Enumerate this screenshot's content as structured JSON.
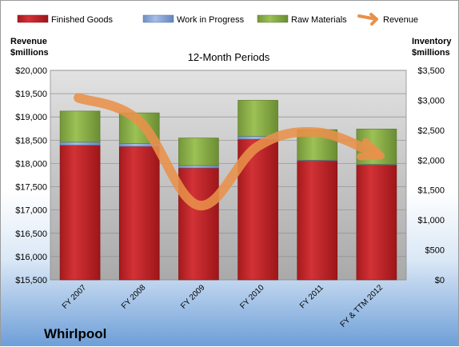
{
  "chart_data": {
    "type": "bar",
    "title": "12-Month Periods",
    "company": "Whirlpool",
    "categories": [
      "FY 2007",
      "FY 2008",
      "FY 2009",
      "FY 2010",
      "FY 2011",
      "FY & TTM 2012"
    ],
    "left_axis": {
      "label_line1": "Revenue",
      "label_line2": "$millions",
      "min": 15500,
      "max": 20000,
      "step": 500,
      "tick_labels": [
        "$15,500",
        "$16,000",
        "$16,500",
        "$17,000",
        "$17,500",
        "$18,000",
        "$18,500",
        "$19,000",
        "$19,500",
        "$20,000"
      ]
    },
    "right_axis": {
      "label_line1": "Inventory",
      "label_line2": "$millions",
      "min": 0,
      "max": 3500,
      "step": 500,
      "tick_labels": [
        "$0",
        "$500",
        "$1,000",
        "$1,500",
        "$2,000",
        "$2,500",
        "$3,000",
        "$3,500"
      ]
    },
    "series": [
      {
        "name": "Finished Goods",
        "axis": "right",
        "color": "#c8282c",
        "values": [
          2250,
          2230,
          1870,
          2350,
          1990,
          1920
        ]
      },
      {
        "name": "Work in Progress",
        "axis": "right",
        "color": "#7f9fd0",
        "values": [
          50,
          50,
          40,
          50,
          10,
          10
        ]
      },
      {
        "name": "Raw Materials",
        "axis": "right",
        "color": "#8db04a",
        "values": [
          520,
          510,
          460,
          600,
          510,
          590
        ]
      },
      {
        "name": "Revenue",
        "axis": "left",
        "color": "#e8914a",
        "type": "line",
        "values": [
          19410,
          18910,
          17100,
          18370,
          18670,
          18200
        ]
      }
    ],
    "grid": true,
    "legend_position": "top"
  }
}
